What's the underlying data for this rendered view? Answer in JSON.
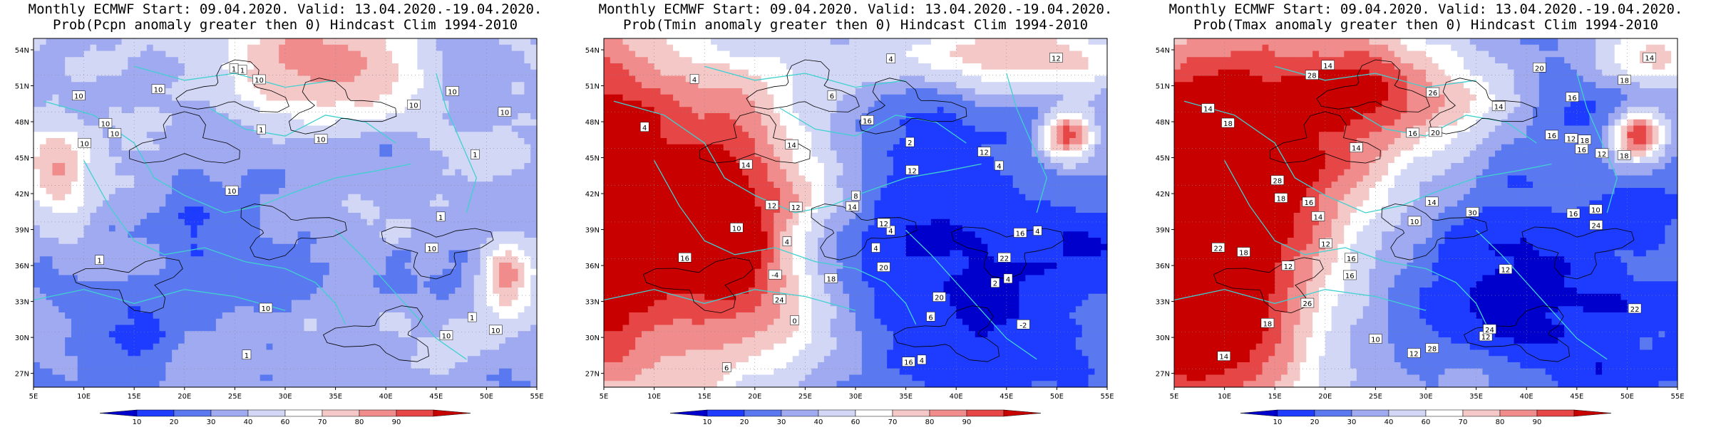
{
  "panels": [
    {
      "id": "pcpn",
      "title_line1": "Monthly ECMWF Start: 09.04.2020. Valid: 13.04.2020.-19.04.2020.",
      "title_line2": "Prob(Pcpn anomaly greater then 0) Hindcast Clim 1994-2010",
      "contour_labels": [
        "10",
        "10",
        "10",
        "10",
        "10",
        "10",
        "10",
        "10",
        "10",
        "10",
        "10",
        "1",
        "1",
        "1",
        "1",
        "1",
        "10",
        "10",
        "10",
        "10",
        "1",
        "1",
        "1"
      ]
    },
    {
      "id": "tmin",
      "title_line1": "Monthly ECMWF Start: 09.04.2020. Valid: 13.04.2020.-19.04.2020.",
      "title_line2": "Prob(Tmin anomaly greater then 0) Hindcast Clim 1994-2010",
      "contour_labels": [
        "4",
        "4",
        "4",
        "4",
        "4",
        "4",
        "2",
        "4",
        "6",
        "6",
        "6",
        "4",
        "4",
        "-4",
        "2",
        "4",
        "-2",
        "12",
        "12",
        "14",
        "16",
        "16",
        "12",
        "14",
        "18",
        "24",
        "22",
        "20",
        "8",
        "10",
        "12",
        "14",
        "12",
        "12",
        "16",
        "16",
        "20",
        "0"
      ]
    },
    {
      "id": "tmax",
      "title_line1": "Monthly ECMWF Start: 09.04.2020. Valid: 13.04.2020.-19.04.2020.",
      "title_line2": "Prob(Tmax anomaly greater then 0) Hindcast Clim 1994-2010",
      "contour_labels": [
        "12",
        "10",
        "12",
        "14",
        "14",
        "16",
        "18",
        "12",
        "14",
        "16",
        "16",
        "18",
        "14",
        "16",
        "18",
        "14",
        "20",
        "16",
        "18",
        "12",
        "14",
        "10",
        "12",
        "14",
        "16",
        "18",
        "20",
        "22",
        "24",
        "26",
        "28",
        "28",
        "30",
        "22",
        "26",
        "24",
        "16",
        "14",
        "12",
        "10",
        "18",
        "18",
        "16",
        "28",
        "12"
      ]
    }
  ],
  "axes": {
    "lat_labels": [
      "54N",
      "51N",
      "48N",
      "45N",
      "42N",
      "39N",
      "36N",
      "33N",
      "30N",
      "27N"
    ],
    "lon_labels": [
      "5E",
      "10E",
      "15E",
      "20E",
      "25E",
      "30E",
      "35E",
      "40E",
      "45E",
      "50E",
      "55E"
    ]
  },
  "colorbar": {
    "labels": [
      "10",
      "20",
      "30",
      "40",
      "60",
      "70",
      "80",
      "90"
    ],
    "colors": [
      "#0000cc",
      "#1e3cff",
      "#5a78f0",
      "#a0aaf0",
      "#d2d7f5",
      "#ffffff",
      "#f5c8c8",
      "#f08c8c",
      "#e64646",
      "#c80000"
    ]
  },
  "style_colors": {
    "coastline": "#40d0d0",
    "contour": "#000000"
  }
}
